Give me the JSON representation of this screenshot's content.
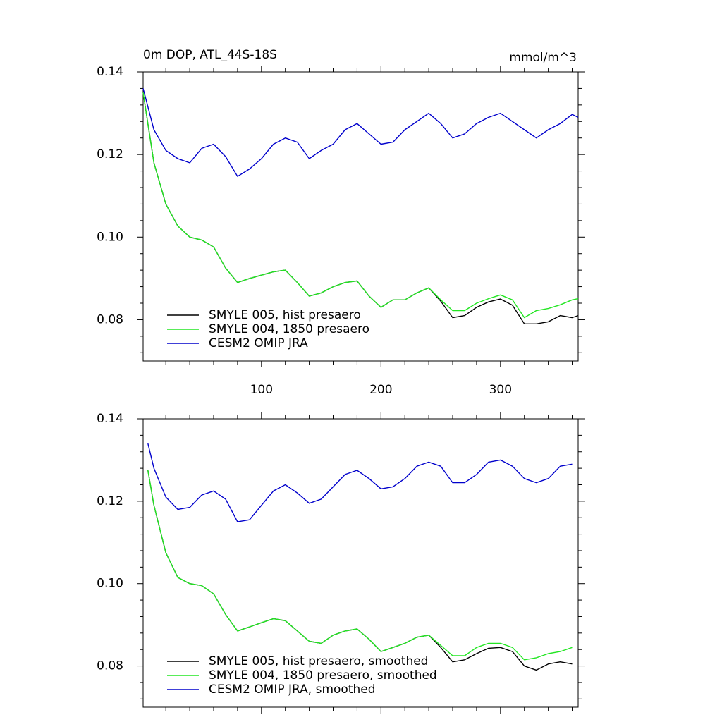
{
  "chart_data": [
    {
      "type": "line",
      "title": "0m DOP, ATL_44S-18S",
      "units": "mmol/m^3",
      "x": [
        1,
        10,
        20,
        30,
        40,
        50,
        60,
        70,
        80,
        90,
        100,
        110,
        120,
        130,
        140,
        150,
        160,
        170,
        180,
        190,
        200,
        210,
        220,
        230,
        240,
        250,
        260,
        270,
        280,
        290,
        300,
        310,
        320,
        330,
        340,
        350,
        360,
        365
      ],
      "xlim": [
        1,
        365
      ],
      "xticks": [
        100,
        200,
        300
      ],
      "xminorticks": [
        20,
        40,
        60,
        80,
        120,
        140,
        160,
        180,
        220,
        240,
        260,
        280,
        320,
        340,
        360
      ],
      "xtick_labels": true,
      "ylim": [
        0.07,
        0.14
      ],
      "yticks": [
        {
          "value": 0.08,
          "label": "0.08"
        },
        {
          "value": 0.1,
          "label": "0.10"
        },
        {
          "value": 0.12,
          "label": "0.12"
        },
        {
          "value": 0.14,
          "label": "0.14"
        }
      ],
      "yminorticks": [
        0.072,
        0.076,
        0.084,
        0.088,
        0.092,
        0.096,
        0.104,
        0.108,
        0.112,
        0.116,
        0.124,
        0.128,
        0.132,
        0.136
      ],
      "legend": "lower left",
      "series": [
        {
          "name": "SMYLE 005, hist presaero",
          "color": "#000000",
          "values": [
            0.135,
            0.118,
            0.108,
            0.1027,
            0.1,
            0.0993,
            0.0976,
            0.0925,
            0.089,
            0.09,
            0.0908,
            0.0916,
            0.092,
            0.089,
            0.0857,
            0.0865,
            0.088,
            0.089,
            0.0894,
            0.0857,
            0.083,
            0.0848,
            0.0848,
            0.0865,
            0.0877,
            0.0845,
            0.0805,
            0.081,
            0.083,
            0.0843,
            0.085,
            0.0835,
            0.079,
            0.079,
            0.0795,
            0.081,
            0.0805,
            0.081
          ]
        },
        {
          "name": "SMYLE 004, 1850 presaero",
          "color": "#22e622",
          "values": [
            0.135,
            0.118,
            0.108,
            0.1027,
            0.1,
            0.0993,
            0.0976,
            0.0925,
            0.089,
            0.09,
            0.0908,
            0.0916,
            0.092,
            0.089,
            0.0857,
            0.0865,
            0.088,
            0.089,
            0.0894,
            0.0857,
            0.083,
            0.0848,
            0.0848,
            0.0865,
            0.0877,
            0.0848,
            0.0822,
            0.0822,
            0.084,
            0.0851,
            0.086,
            0.0848,
            0.0805,
            0.0822,
            0.0827,
            0.0836,
            0.0848,
            0.0851
          ]
        },
        {
          "name": "CESM2 OMIP JRA",
          "color": "#0000cc",
          "values": [
            0.136,
            0.126,
            0.121,
            0.119,
            0.118,
            0.1215,
            0.1225,
            0.1195,
            0.1147,
            0.1165,
            0.119,
            0.1225,
            0.124,
            0.123,
            0.119,
            0.121,
            0.1225,
            0.126,
            0.1275,
            0.125,
            0.1225,
            0.123,
            0.126,
            0.128,
            0.13,
            0.1275,
            0.124,
            0.125,
            0.1275,
            0.129,
            0.13,
            0.128,
            0.126,
            0.124,
            0.126,
            0.1275,
            0.1297,
            0.129
          ]
        }
      ]
    },
    {
      "type": "line",
      "x": [
        5,
        10,
        20,
        30,
        40,
        50,
        60,
        70,
        80,
        90,
        100,
        110,
        120,
        130,
        140,
        150,
        160,
        170,
        180,
        190,
        200,
        210,
        220,
        230,
        240,
        250,
        260,
        270,
        280,
        290,
        300,
        310,
        320,
        330,
        340,
        350,
        360
      ],
      "xlim": [
        1,
        365
      ],
      "xticks": [
        100,
        200,
        300
      ],
      "xminorticks": [
        20,
        40,
        60,
        80,
        120,
        140,
        160,
        180,
        220,
        240,
        260,
        280,
        320,
        340,
        360
      ],
      "xtick_labels": false,
      "ylim": [
        0.07,
        0.14
      ],
      "yticks": [
        {
          "value": 0.08,
          "label": "0.08"
        },
        {
          "value": 0.1,
          "label": "0.10"
        },
        {
          "value": 0.12,
          "label": "0.12"
        },
        {
          "value": 0.14,
          "label": "0.14"
        }
      ],
      "yminorticks": [
        0.072,
        0.076,
        0.084,
        0.088,
        0.092,
        0.096,
        0.104,
        0.108,
        0.112,
        0.116,
        0.124,
        0.128,
        0.132,
        0.136
      ],
      "legend": "lower left",
      "series": [
        {
          "name": "SMYLE 005, hist presaero, smoothed",
          "color": "#000000",
          "values": [
            0.1275,
            0.119,
            0.1075,
            0.1015,
            0.1,
            0.0995,
            0.0975,
            0.0925,
            0.0885,
            0.0895,
            0.0905,
            0.0915,
            0.091,
            0.0885,
            0.086,
            0.0855,
            0.0875,
            0.0885,
            0.089,
            0.0865,
            0.0835,
            0.0845,
            0.0855,
            0.087,
            0.0875,
            0.0845,
            0.081,
            0.0815,
            0.083,
            0.0843,
            0.0845,
            0.0835,
            0.08,
            0.079,
            0.0805,
            0.081,
            0.0805
          ]
        },
        {
          "name": "SMYLE 004, 1850 presaero, smoothed",
          "color": "#22e622",
          "values": [
            0.1275,
            0.119,
            0.1075,
            0.1015,
            0.1,
            0.0995,
            0.0975,
            0.0925,
            0.0885,
            0.0895,
            0.0905,
            0.0915,
            0.091,
            0.0885,
            0.086,
            0.0855,
            0.0875,
            0.0885,
            0.089,
            0.0865,
            0.0835,
            0.0845,
            0.0855,
            0.087,
            0.0875,
            0.085,
            0.0825,
            0.0825,
            0.0845,
            0.0855,
            0.0855,
            0.0845,
            0.0815,
            0.082,
            0.083,
            0.0835,
            0.0845
          ]
        },
        {
          "name": "CESM2 OMIP JRA, smoothed",
          "color": "#0000cc",
          "values": [
            0.134,
            0.128,
            0.121,
            0.118,
            0.1185,
            0.1215,
            0.1225,
            0.1205,
            0.115,
            0.1155,
            0.119,
            0.1225,
            0.124,
            0.122,
            0.1195,
            0.1205,
            0.1235,
            0.1265,
            0.1275,
            0.1255,
            0.123,
            0.1235,
            0.1255,
            0.1285,
            0.1295,
            0.1285,
            0.1245,
            0.1245,
            0.1265,
            0.1295,
            0.13,
            0.1285,
            0.1255,
            0.1245,
            0.1255,
            0.1285,
            0.129
          ]
        }
      ]
    }
  ]
}
